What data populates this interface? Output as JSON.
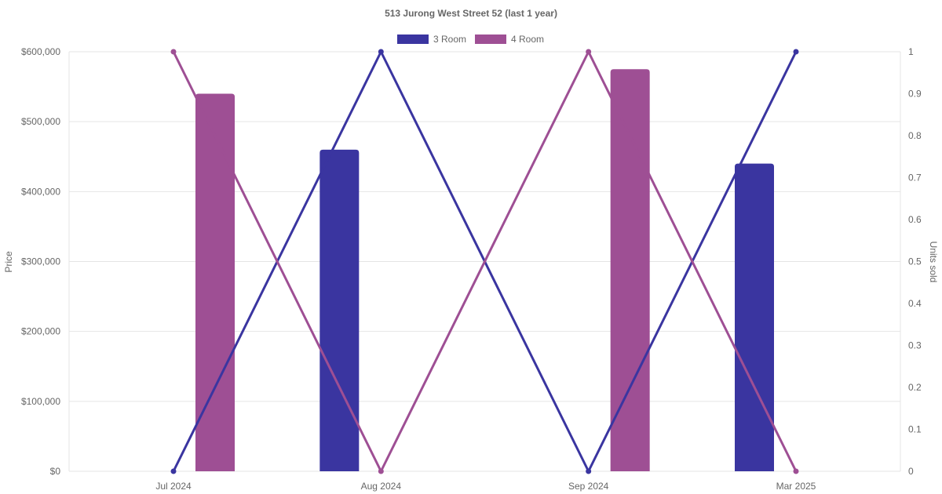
{
  "chart_data": {
    "type": "bar",
    "title": "513 Jurong West Street 52 (last 1 year)",
    "categories": [
      "Jul 2024",
      "Aug 2024",
      "Sep 2024",
      "Mar 2025"
    ],
    "y_left": {
      "label": "Price",
      "range": [
        0,
        600000
      ],
      "ticks": [
        "$0",
        "$100,000",
        "$200,000",
        "$300,000",
        "$400,000",
        "$500,000",
        "$600,000"
      ]
    },
    "y_right": {
      "label": "Units sold",
      "range": [
        0,
        1
      ],
      "ticks": [
        "0",
        "0.1",
        "0.2",
        "0.3",
        "0.4",
        "0.5",
        "0.6",
        "0.7",
        "0.8",
        "0.9",
        "1"
      ]
    },
    "legend": {
      "position": "top"
    },
    "series": [
      {
        "name": "3 Room",
        "color": "#3a35a0",
        "price": [
          null,
          460000,
          null,
          440000
        ],
        "units_sold": [
          0,
          1,
          0,
          1
        ]
      },
      {
        "name": "4 Room",
        "color": "#9e4f94",
        "price": [
          540000,
          null,
          575000,
          null
        ],
        "units_sold": [
          1,
          0,
          1,
          0
        ]
      }
    ],
    "grid": true
  }
}
